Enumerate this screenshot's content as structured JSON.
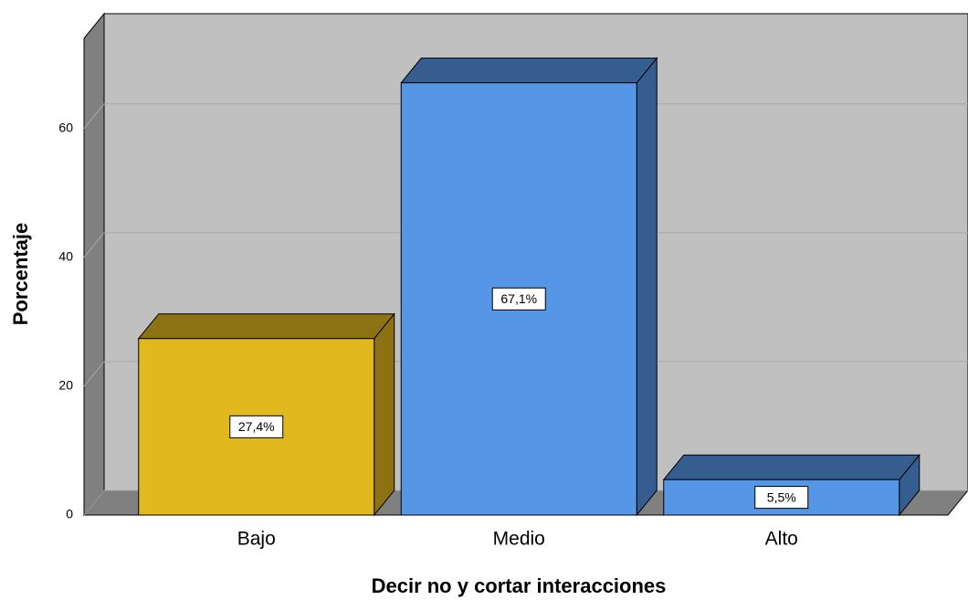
{
  "chart_data": {
    "type": "bar3d",
    "x_label": "Decir no y cortar interacciones",
    "y_label": "Porcentaje",
    "categories": [
      "Bajo",
      "Medio",
      "Alto"
    ],
    "values": [
      27.4,
      67.1,
      5.5
    ],
    "value_labels": [
      "27,4%",
      "67,1%",
      "5,5%"
    ],
    "colors": [
      "#e1b81e",
      "#5596e6",
      "#5596e6"
    ],
    "ylim": [
      0,
      74
    ],
    "yticks": [
      0,
      20,
      40,
      60
    ],
    "grid": true
  }
}
